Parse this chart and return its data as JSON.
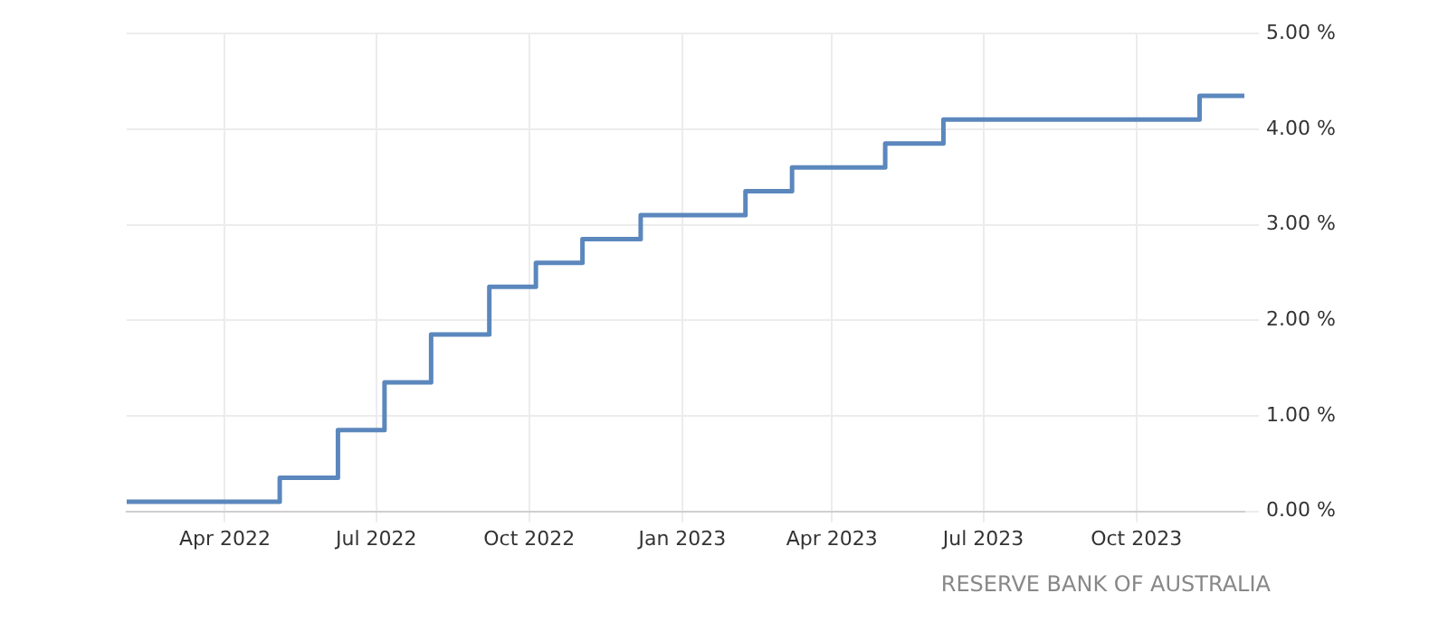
{
  "chart_data": {
    "type": "step",
    "x": [
      "2022-02-01",
      "2022-05-04",
      "2022-06-08",
      "2022-07-06",
      "2022-08-03",
      "2022-09-07",
      "2022-10-05",
      "2022-11-02",
      "2022-12-07",
      "2023-02-08",
      "2023-03-08",
      "2023-05-03",
      "2023-06-07",
      "2023-11-08",
      "2023-12-05"
    ],
    "series": [
      {
        "color": "#5b87bd",
        "values": [
          0.1,
          0.35,
          0.85,
          1.35,
          1.85,
          2.35,
          2.6,
          2.85,
          3.1,
          3.35,
          3.6,
          3.85,
          4.1,
          4.35,
          4.35
        ]
      }
    ],
    "xlim": [
      "2022-02-01",
      "2023-12-05"
    ],
    "xticks": [
      {
        "value": "2022-04-01",
        "label": "Apr 2022"
      },
      {
        "value": "2022-07-01",
        "label": "Jul 2022"
      },
      {
        "value": "2022-10-01",
        "label": "Oct 2022"
      },
      {
        "value": "2023-01-01",
        "label": "Jan 2023"
      },
      {
        "value": "2023-04-01",
        "label": "Apr 2023"
      },
      {
        "value": "2023-07-01",
        "label": "Jul 2023"
      },
      {
        "value": "2023-10-01",
        "label": "Oct 2023"
      }
    ],
    "ylim": [
      0,
      5
    ],
    "yticks": [
      {
        "value": 0,
        "label": "0.00 %"
      },
      {
        "value": 1,
        "label": "1.00 %"
      },
      {
        "value": 2,
        "label": "2.00 %"
      },
      {
        "value": 3,
        "label": "3.00 %"
      },
      {
        "value": 4,
        "label": "4.00 %"
      },
      {
        "value": 5,
        "label": "5.00 %"
      }
    ],
    "grid": true,
    "legend": false,
    "marker": "none",
    "line_style": "solid",
    "annotations": [
      "RESERVE BANK OF AUSTRALIA"
    ]
  }
}
